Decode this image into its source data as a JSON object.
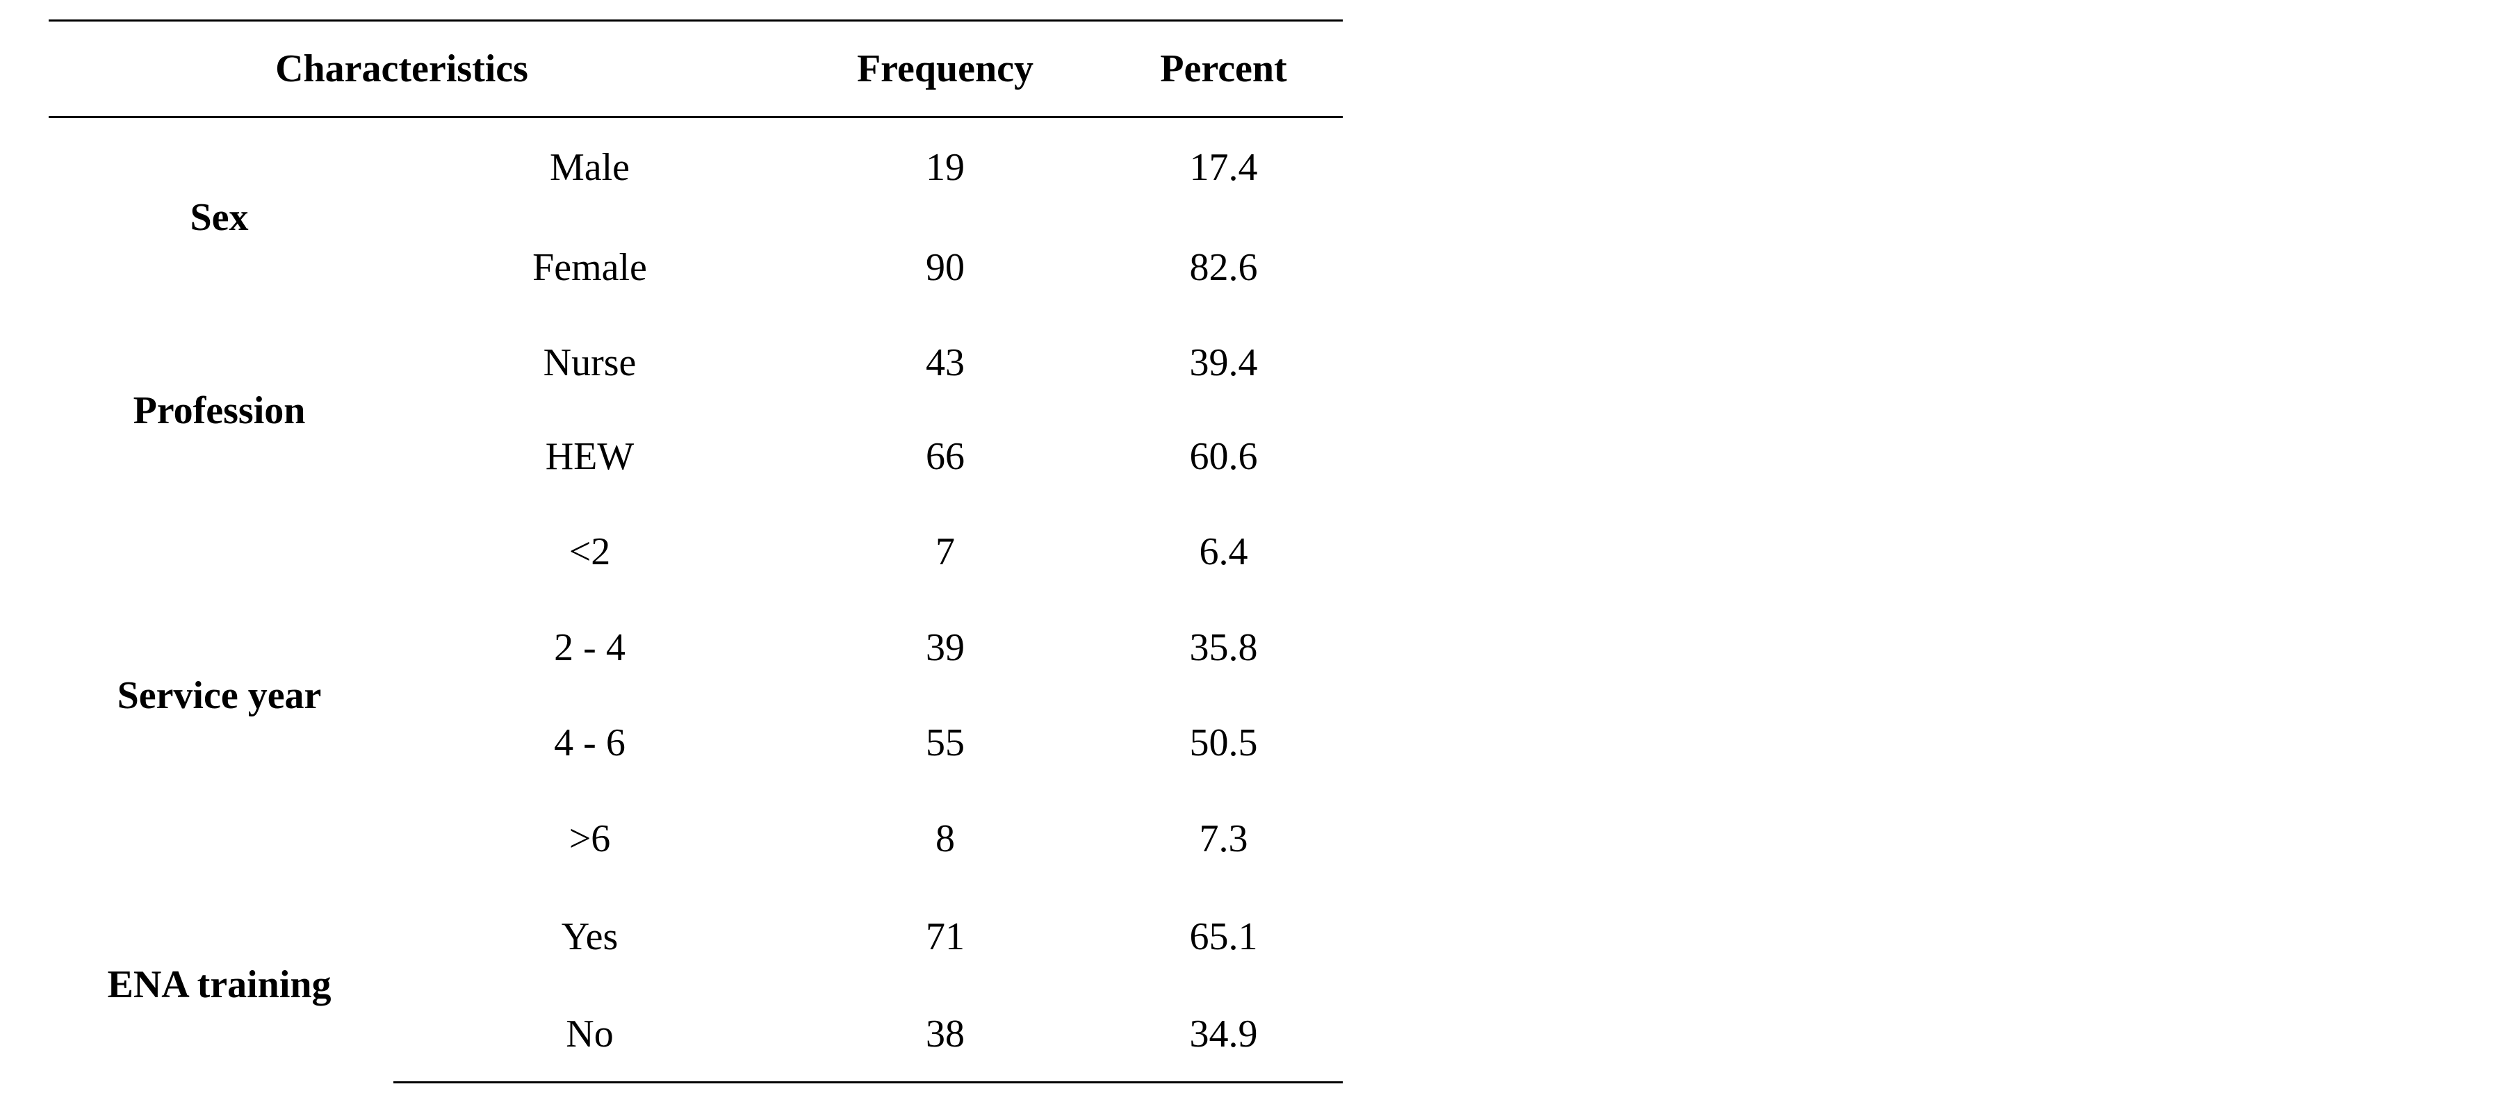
{
  "table": {
    "headers": {
      "characteristics": "Characteristics",
      "frequency": "Frequency",
      "percent": "Percent"
    },
    "groups": [
      {
        "label": "Sex",
        "rows": [
          {
            "category": "Male",
            "frequency": "19",
            "percent": "17.4"
          },
          {
            "category": "Female",
            "frequency": "90",
            "percent": "82.6"
          }
        ]
      },
      {
        "label": "Profession",
        "rows": [
          {
            "category": "Nurse",
            "frequency": "43",
            "percent": "39.4"
          },
          {
            "category": "HEW",
            "frequency": "66",
            "percent": "60.6"
          }
        ]
      },
      {
        "label": "Service year",
        "rows": [
          {
            "category": "<2",
            "frequency": "7",
            "percent": "6.4"
          },
          {
            "category": "2 - 4",
            "frequency": "39",
            "percent": "35.8"
          },
          {
            "category": "4 - 6",
            "frequency": "55",
            "percent": "50.5"
          },
          {
            "category": ">6",
            "frequency": "8",
            "percent": "7.3"
          }
        ]
      },
      {
        "label": "ENA training",
        "rows": [
          {
            "category": "Yes",
            "frequency": "71",
            "percent": "65.1"
          },
          {
            "category": "No",
            "frequency": "38",
            "percent": "34.9"
          }
        ]
      }
    ]
  }
}
